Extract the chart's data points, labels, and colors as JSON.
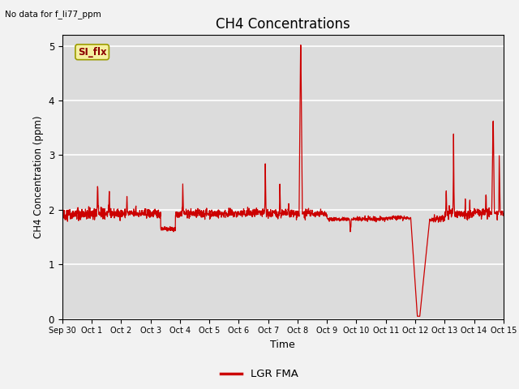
{
  "title": "CH4 Concentrations",
  "xlabel": "Time",
  "ylabel": "CH4 Concentration (ppm)",
  "top_left_text": "No data for f_li77_ppm",
  "legend_label": "LGR FMA",
  "annotation_box_text": "SI_flx",
  "ylim": [
    0.0,
    5.2
  ],
  "line_color": "#cc0000",
  "background_color": "#dcdcdc",
  "fig_background": "#f2f2f2",
  "x_tick_labels": [
    "Sep 30",
    "Oct 1",
    "Oct 2",
    "Oct 3",
    "Oct 4",
    "Oct 5",
    "Oct 6",
    "Oct 7",
    "Oct 8",
    "Oct 9",
    "Oct 10",
    "Oct 11",
    "Oct 12",
    "Oct 13",
    "Oct 14",
    "Oct 15"
  ],
  "x_tick_positions": [
    0,
    1,
    2,
    3,
    4,
    5,
    6,
    7,
    8,
    9,
    10,
    11,
    12,
    13,
    14,
    15
  ]
}
